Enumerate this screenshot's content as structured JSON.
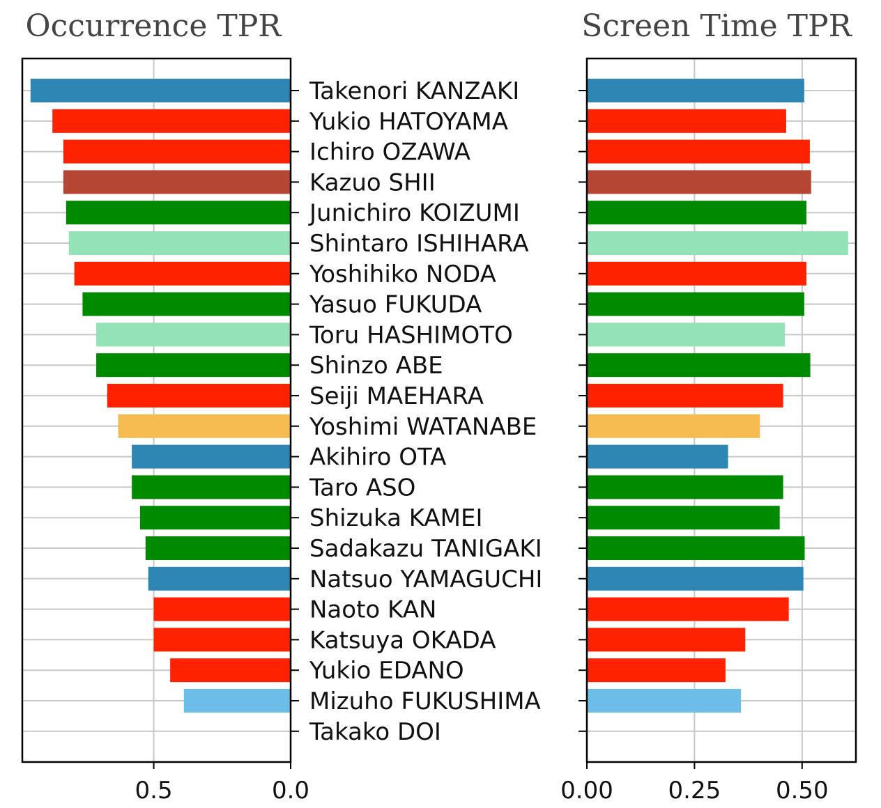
{
  "chart_data": {
    "type": "bar",
    "orientation": "horizontal",
    "grid": true,
    "categories": [
      "Takenori KANZAKI",
      "Yukio HATOYAMA",
      "Ichiro OZAWA",
      "Kazuo SHII",
      "Junichiro KOIZUMI",
      "Shintaro ISHIHARA",
      "Yoshihiko NODA",
      "Yasuo FUKUDA",
      "Toru HASHIMOTO",
      "Shinzo ABE",
      "Seiji MAEHARA",
      "Yoshimi WATANABE",
      "Akihiro OTA",
      "Taro ASO",
      "Shizuka KAMEI",
      "Sadakazu TANIGAKI",
      "Natsuo YAMAGUCHI",
      "Naoto KAN",
      "Katsuya OKADA",
      "Yukio EDANO",
      "Mizuho FUKUSHIMA",
      "Takako DOI"
    ],
    "bar_colors": [
      "#2e86b5",
      "#ff2200",
      "#ff2200",
      "#b64634",
      "#008a00",
      "#94e3b8",
      "#ff2200",
      "#008a00",
      "#94e3b8",
      "#008a00",
      "#ff2200",
      "#f7bc51",
      "#2e86b5",
      "#008a00",
      "#008a00",
      "#008a00",
      "#2e86b5",
      "#ff2200",
      "#ff2200",
      "#ff2200",
      "#6cbde8",
      "#ff2200"
    ],
    "panels": [
      {
        "title": "Occurrence TPR",
        "direction": "reversed",
        "xlim": [
          0,
          0.98
        ],
        "xticks": [
          0.5,
          0.0
        ],
        "xtick_labels": [
          "0.5",
          "0.0"
        ],
        "values": [
          0.95,
          0.87,
          0.83,
          0.83,
          0.82,
          0.81,
          0.79,
          0.76,
          0.71,
          0.71,
          0.67,
          0.63,
          0.58,
          0.58,
          0.55,
          0.53,
          0.52,
          0.5,
          0.5,
          0.44,
          0.39,
          0.0
        ]
      },
      {
        "title": "Screen Time TPR",
        "direction": "normal",
        "xlim": [
          0,
          0.625
        ],
        "xticks": [
          0.0,
          0.25,
          0.5
        ],
        "xtick_labels": [
          "0.00",
          "0.25",
          "0.50"
        ],
        "values": [
          0.505,
          0.463,
          0.518,
          0.521,
          0.51,
          0.607,
          0.51,
          0.505,
          0.46,
          0.519,
          0.456,
          0.402,
          0.328,
          0.456,
          0.448,
          0.506,
          0.503,
          0.469,
          0.368,
          0.322,
          0.358,
          0.0
        ]
      }
    ]
  }
}
